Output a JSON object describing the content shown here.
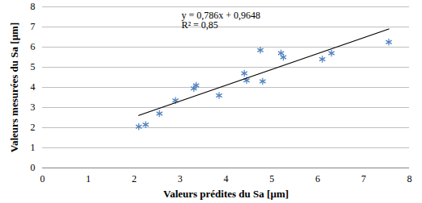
{
  "chart_data": {
    "type": "scatter",
    "x_label": "Valeurs prédites du Sa [µm]",
    "y_label": "Valeurs mesurées du Sa [µm]",
    "xlim": [
      0,
      8
    ],
    "ylim": [
      0,
      8
    ],
    "xticks": [
      0,
      1,
      2,
      3,
      4,
      5,
      6,
      7,
      8
    ],
    "yticks": [
      0,
      1,
      2,
      3,
      4,
      5,
      6,
      7,
      8
    ],
    "grid": true,
    "annotations": [
      "y = 0,786x + 0,9648",
      "R² = 0,85"
    ],
    "series": [
      {
        "type": "scatter",
        "color": "#4f81bd",
        "marker": "asterisk",
        "x": [
          2.1,
          2.25,
          2.55,
          2.9,
          3.3,
          3.35,
          3.85,
          4.4,
          4.45,
          4.75,
          4.8,
          5.2,
          5.25,
          6.1,
          6.3,
          7.55
        ],
        "values": [
          2.05,
          2.15,
          2.7,
          3.35,
          3.95,
          4.1,
          3.6,
          4.7,
          4.35,
          5.85,
          4.3,
          5.7,
          5.5,
          5.4,
          5.7,
          6.25
        ]
      },
      {
        "type": "line",
        "color": "#000000",
        "line_style": "solid",
        "x": [
          2.1,
          7.55
        ],
        "values": [
          2.61,
          6.9
        ]
      }
    ]
  }
}
